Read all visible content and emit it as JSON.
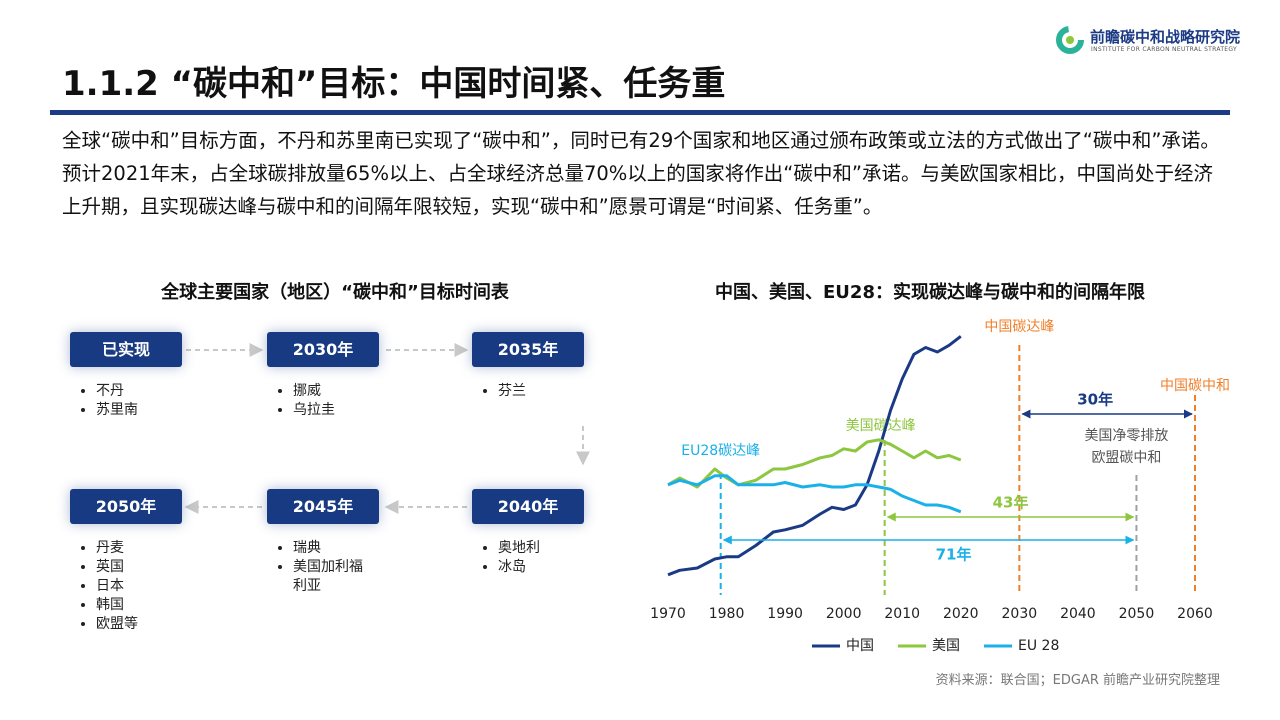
{
  "header": {
    "title": "1.1.2 “碳中和”目标：中国时间紧、任务重",
    "logo_name": "前瞻碳中和战略研究院",
    "logo_subtitle": "INSTITUTE FOR CARBON NEUTRAL STRATEGY"
  },
  "intro": "全球“碳中和”目标方面，不丹和苏里南已实现了“碳中和”，同时已有29个国家和地区通过颁布政策或立法的方式做出了“碳中和”承诺。预计2021年末，占全球碳排放量65%以上、占全球经济总量70%以上的国家将作出“碳中和”承诺。与美欧国家相比，中国尚处于经济上升期，且实现碳达峰与碳中和的间隔年限较短，实现“碳中和”愿景可谓是“时间紧、任务重”。",
  "timeline": {
    "title": "全球主要国家（地区）“碳中和”目标时间表",
    "stages": [
      {
        "label": "已实现",
        "items": [
          "不丹",
          "苏里南"
        ]
      },
      {
        "label": "2030年",
        "items": [
          "挪威",
          "乌拉圭"
        ]
      },
      {
        "label": "2035年",
        "items": [
          "芬兰"
        ]
      },
      {
        "label": "2040年",
        "items": [
          "奥地利",
          "冰岛"
        ]
      },
      {
        "label": "2045年",
        "items": [
          "瑞典",
          "美国加利福利亚"
        ]
      },
      {
        "label": "2050年",
        "items": [
          "丹麦",
          "英国",
          "日本",
          "韩国",
          "欧盟等"
        ]
      }
    ]
  },
  "chart_data": {
    "type": "line",
    "title": "中国、美国、EU28：实现碳达峰与碳中和的间隔年限",
    "x": [
      1970,
      1972,
      1975,
      1978,
      1980,
      1982,
      1985,
      1988,
      1990,
      1993,
      1996,
      1998,
      2000,
      2002,
      2004,
      2006,
      2008,
      2010,
      2012,
      2014,
      2016,
      2018,
      2020
    ],
    "series": [
      {
        "name": "中国",
        "color": "#1a3a85",
        "values": [
          0.9,
          1.1,
          1.2,
          1.6,
          1.7,
          1.7,
          2.2,
          2.8,
          2.9,
          3.1,
          3.6,
          3.9,
          3.8,
          4.0,
          4.9,
          6.4,
          8.2,
          9.6,
          10.7,
          11.0,
          10.8,
          11.1,
          11.5
        ]
      },
      {
        "name": "美国",
        "color": "#8dc63f",
        "values": [
          4.9,
          5.2,
          4.8,
          5.6,
          5.2,
          4.9,
          5.1,
          5.6,
          5.6,
          5.8,
          6.1,
          6.2,
          6.5,
          6.4,
          6.8,
          6.9,
          6.7,
          6.4,
          6.1,
          6.4,
          6.1,
          6.2,
          6.0
        ]
      },
      {
        "name": "EU 28",
        "color": "#1ab0e8",
        "values": [
          4.9,
          5.1,
          4.9,
          5.3,
          5.3,
          4.9,
          4.9,
          4.9,
          5.0,
          4.8,
          4.9,
          4.8,
          4.8,
          4.9,
          4.9,
          4.8,
          4.7,
          4.4,
          4.2,
          4.0,
          4.0,
          3.9,
          3.7
        ]
      }
    ],
    "xlim": [
      1970,
      2060
    ],
    "xticks": [
      1970,
      1980,
      1990,
      2000,
      2010,
      2020,
      2030,
      2040,
      2050,
      2060
    ],
    "ylim": [
      0,
      12
    ],
    "markers": [
      {
        "x": 1979,
        "color": "#1ab0e8",
        "label": [
          "EU28碳达峰"
        ]
      },
      {
        "x": 2007,
        "color": "#8dc63f",
        "label": [
          "美国碳达峰"
        ]
      },
      {
        "x": 2030,
        "color": "#f07f2a",
        "label": [
          "中国碳达峰"
        ]
      },
      {
        "x": 2050,
        "color": "#a0a0a0",
        "label": [
          "美国净零排放",
          "欧盟碳中和"
        ]
      },
      {
        "x": 2060,
        "color": "#f07f2a",
        "label": [
          "中国碳中和"
        ]
      }
    ],
    "spans": [
      {
        "from": 2030,
        "to": 2060,
        "label": "30年",
        "color": "#1a3a85"
      },
      {
        "from": 2007,
        "to": 2050,
        "label": "43年",
        "color": "#8dc63f"
      },
      {
        "from": 1979,
        "to": 2050,
        "label": "71年",
        "color": "#1ab0e8"
      }
    ],
    "legend": "bottom"
  },
  "source": "资料来源：联合国；EDGAR 前瞻产业研究院整理"
}
